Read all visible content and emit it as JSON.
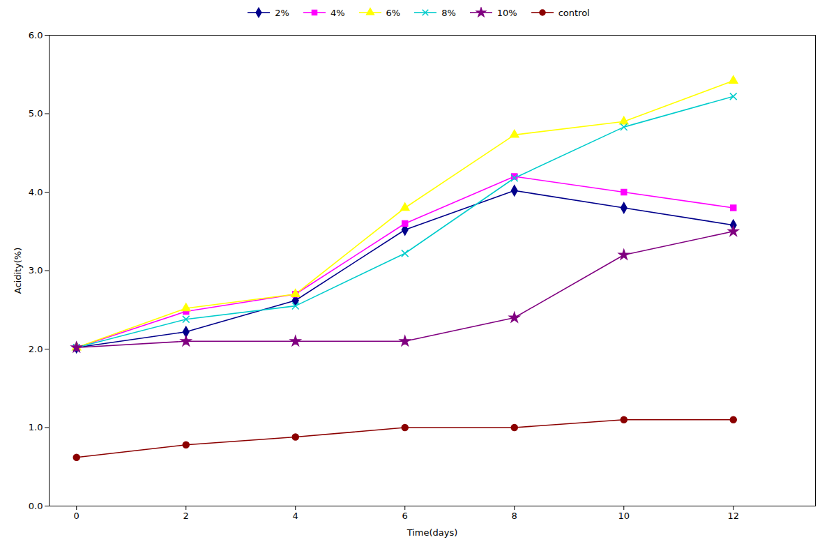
{
  "chart_data": {
    "type": "line",
    "xlabel": "Time(days)",
    "ylabel": "Acidity(%)",
    "x": [
      0,
      2,
      4,
      6,
      8,
      10,
      12
    ],
    "series": [
      {
        "name": "2%",
        "color": "#00008B",
        "marker": "diamond",
        "values": [
          2.02,
          2.22,
          2.62,
          3.52,
          4.02,
          3.8,
          3.58
        ]
      },
      {
        "name": "4%",
        "color": "#FF00FF",
        "marker": "square",
        "values": [
          2.02,
          2.48,
          2.7,
          3.6,
          4.2,
          4.0,
          3.8
        ]
      },
      {
        "name": "6%",
        "color": "#FFFF00",
        "marker": "triangle",
        "values": [
          2.02,
          2.52,
          2.7,
          3.8,
          4.73,
          4.9,
          5.42
        ]
      },
      {
        "name": "8%",
        "color": "#00CCCC",
        "marker": "x",
        "values": [
          2.02,
          2.38,
          2.55,
          3.22,
          4.18,
          4.83,
          5.22
        ]
      },
      {
        "name": "10%",
        "color": "#800080",
        "marker": "star",
        "values": [
          2.02,
          2.1,
          2.1,
          2.1,
          2.4,
          3.2,
          3.5
        ]
      },
      {
        "name": "control",
        "color": "#8B0000",
        "marker": "circle",
        "values": [
          0.62,
          0.78,
          0.88,
          1.0,
          1.0,
          1.1,
          1.1
        ]
      }
    ],
    "xlim": [
      -0.5,
      13.5
    ],
    "ylim": [
      0,
      6
    ],
    "xticks": [
      0,
      2,
      4,
      6,
      8,
      10,
      12
    ],
    "yticks": [
      0,
      1,
      2,
      3,
      4,
      5,
      6
    ],
    "grid": false,
    "legend": "top"
  }
}
